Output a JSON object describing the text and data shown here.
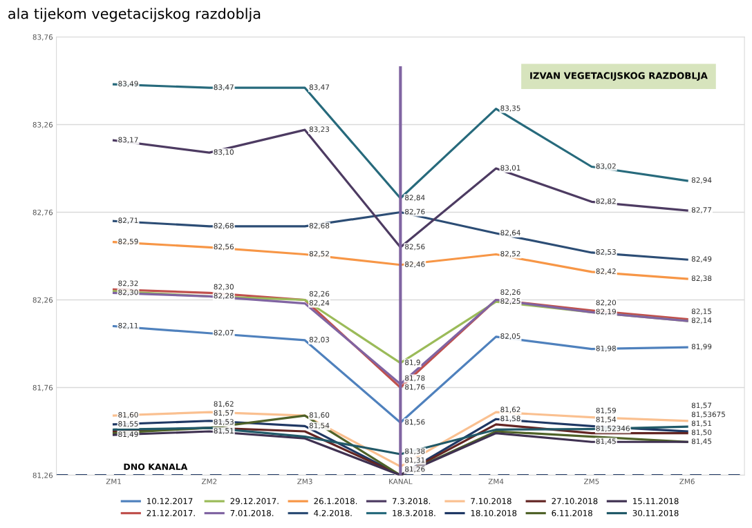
{
  "chart_data": {
    "type": "line",
    "title": "ala tijekom vegetacijskog razdoblja",
    "categories": [
      "ZM1",
      "ZM2",
      "ZM3",
      "KANAL",
      "ZM4",
      "ZM5",
      "ZM6"
    ],
    "ylim": [
      81.26,
      83.76
    ],
    "yticks": [
      {
        "value": 81.26,
        "label": "81,26"
      },
      {
        "value": 81.76,
        "label": "81,76"
      },
      {
        "value": 82.26,
        "label": "82,26"
      },
      {
        "value": 82.76,
        "label": "82,76"
      },
      {
        "value": 83.26,
        "label": "83,26"
      },
      {
        "value": 83.76,
        "label": "83,76"
      }
    ],
    "grid": "y",
    "legend": "bottom",
    "marker": "none",
    "line_style": "solid",
    "series": [
      {
        "name": "10.12.2017",
        "color": "#4f81bd",
        "values": [
          82.11,
          82.07,
          82.03,
          81.56,
          82.05,
          81.98,
          81.99
        ],
        "value_labels": [
          "82,11",
          "82,07",
          "82,03",
          "81,56",
          "82,05",
          "81,98",
          "81,99"
        ]
      },
      {
        "name": "21.12.2017.",
        "color": "#c0504d",
        "values": [
          82.32,
          82.3,
          82.26,
          81.76,
          82.26,
          82.2,
          82.15
        ],
        "value_labels": [
          "82,32",
          "82,30",
          null,
          "81,76",
          null,
          "82,20",
          "82,15"
        ]
      },
      {
        "name": "29.12.2017.",
        "color": "#9bbb59",
        "values": [
          82.31,
          82.28,
          82.26,
          81.9,
          82.25,
          82.19,
          82.14
        ],
        "value_labels": [
          null,
          null,
          "82,26",
          "81,9",
          "82,25",
          null,
          null
        ]
      },
      {
        "name": "7.01.2018.",
        "color": "#8064a2",
        "values": [
          82.3,
          82.28,
          82.24,
          81.78,
          82.26,
          82.19,
          82.14
        ],
        "value_labels": [
          "82,30",
          "82,28",
          "82,24",
          "81,78",
          "82,26",
          "82,19",
          "82,14"
        ]
      },
      {
        "name": "26.1.2018.",
        "color": "#f79646",
        "values": [
          82.59,
          82.56,
          82.52,
          82.46,
          82.52,
          82.42,
          82.38
        ],
        "value_labels": [
          "82,59",
          "82,56",
          "82,52",
          "82,46",
          "82,52",
          "82,42",
          "82,38"
        ]
      },
      {
        "name": "4.2.2018.",
        "color": "#2c4d75",
        "values": [
          82.71,
          82.68,
          82.68,
          82.76,
          82.64,
          82.53,
          82.49
        ],
        "value_labels": [
          "82,71",
          "82,68",
          "82,68",
          "82,76",
          "82,64",
          "82,53",
          "82,49"
        ]
      },
      {
        "name": "7.3.2018.",
        "color": "#4d3b62",
        "values": [
          83.17,
          83.1,
          83.23,
          82.56,
          83.01,
          82.82,
          82.77
        ],
        "value_labels": [
          "83,17",
          "83,10",
          "83,23",
          "82,56",
          "83,01",
          "82,82",
          "82,77"
        ]
      },
      {
        "name": "18.3.2018.",
        "color": "#276a7c",
        "values": [
          83.49,
          83.47,
          83.47,
          82.84,
          83.35,
          83.02,
          82.94
        ],
        "value_labels": [
          "83,49",
          "83,47",
          "83,47",
          "82,84",
          "83,35",
          "83,02",
          "82,94"
        ]
      },
      {
        "name": "7.10.2018",
        "color": "#fac090",
        "values": [
          81.6,
          81.62,
          81.6,
          81.31,
          81.62,
          81.59,
          81.57
        ],
        "value_labels": [
          "81,60",
          "81,62",
          null,
          "81,31",
          "81,62",
          "81,59",
          "81,57"
        ]
      },
      {
        "name": "18.10.2018",
        "color": "#1f3864",
        "values": [
          81.55,
          81.57,
          81.54,
          81.26,
          81.58,
          81.54,
          81.51
        ],
        "value_labels": [
          "81,55",
          "81,57",
          "81,54",
          "81,26",
          "81,58",
          "81,54",
          "81,51"
        ]
      },
      {
        "name": "27.10.2018",
        "color": "#632523",
        "values": [
          81.51,
          81.53,
          81.51,
          81.26,
          81.55,
          81.5,
          81.5
        ],
        "value_labels": [
          null,
          "81,53",
          null,
          null,
          null,
          null,
          "81,50"
        ]
      },
      {
        "name": "6.11.2018",
        "color": "#4f6228",
        "values": [
          81.5,
          81.53,
          81.6,
          81.26,
          81.51,
          81.48,
          81.45
        ],
        "value_labels": [
          null,
          null,
          "81,60",
          null,
          null,
          null,
          "81,45"
        ]
      },
      {
        "name": "15.11.2018",
        "color": "#3f3151",
        "values": [
          81.49,
          81.51,
          81.47,
          81.26,
          81.5,
          81.45,
          81.45
        ],
        "value_labels": [
          "81,49",
          "81,51",
          null,
          null,
          null,
          "81,45",
          null
        ]
      },
      {
        "name": "30.11.2018",
        "color": "#215968",
        "values": [
          81.52,
          81.53,
          81.48,
          81.38,
          81.52,
          81.52346,
          81.53675
        ],
        "value_labels": [
          null,
          null,
          null,
          "81,38",
          null,
          "81,52346",
          "81,53675"
        ]
      }
    ],
    "ref_lines": [
      {
        "axis": "x",
        "value": "KANAL",
        "color": "#8064a2",
        "line_style": "solid"
      },
      {
        "axis": "y",
        "value": 81.26,
        "label": "DNO KANALA",
        "color": "#1f3864",
        "line_style": "dashed"
      }
    ],
    "annotations": [
      "IZVAN VEGETACIJSKOG RAZDOBLJA"
    ]
  }
}
